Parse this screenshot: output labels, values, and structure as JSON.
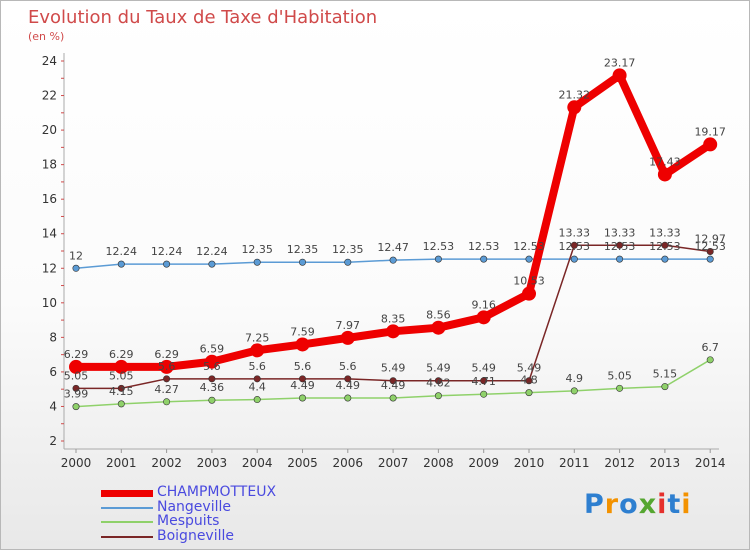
{
  "header": {
    "title": "Evolution du Taux de Taxe d'Habitation",
    "unit": "(en %)"
  },
  "chart_data": {
    "type": "line",
    "title": "Evolution du Taux de Taxe d'Habitation",
    "ylabel": "(en %)",
    "xlabel": "",
    "x": [
      "2000",
      "2001",
      "2002",
      "2003",
      "2004",
      "2005",
      "2006",
      "2007",
      "2008",
      "2009",
      "2010",
      "2011",
      "2012",
      "2013",
      "2014"
    ],
    "yticks": [
      "2",
      "4",
      "6",
      "8",
      "10",
      "12",
      "14",
      "16",
      "18",
      "20",
      "22",
      "24"
    ],
    "ylim": [
      2,
      24
    ],
    "grid": false,
    "legend_position": "bottom-left",
    "series": [
      {
        "name": "CHAMPMOTTEUX",
        "color": "#ee0000",
        "values": [
          6.29,
          6.29,
          6.29,
          6.59,
          7.25,
          7.59,
          7.97,
          8.35,
          8.56,
          9.16,
          10.53,
          21.32,
          23.17,
          17.43,
          19.17
        ],
        "labels": [
          "6.29",
          "6.29",
          "6.29",
          "6.59",
          "7.25",
          "7.59",
          "7.97",
          "8.35",
          "8.56",
          "9.16",
          "10.53",
          "21.32",
          "23.17",
          "17.43",
          "19.17"
        ]
      },
      {
        "name": "Nangeville",
        "color": "#5b9bd5",
        "values": [
          12,
          12.24,
          12.24,
          12.24,
          12.35,
          12.35,
          12.35,
          12.47,
          12.53,
          12.53,
          12.53,
          12.53,
          12.53,
          12.53,
          12.53
        ],
        "labels": [
          "12",
          "12.24",
          "12.24",
          "12.24",
          "12.35",
          "12.35",
          "12.35",
          "12.47",
          "12.53",
          "12.53",
          "12.53",
          "12.53",
          "12.53",
          "12.53",
          "12.53"
        ]
      },
      {
        "name": "Mespuits",
        "color": "#8fd16a",
        "values": [
          3.99,
          4.15,
          4.27,
          4.36,
          4.4,
          4.49,
          4.49,
          4.49,
          4.62,
          4.71,
          4.8,
          4.9,
          5.05,
          5.15,
          6.7
        ],
        "labels": [
          "3.99",
          "4.15",
          "4.27",
          "4.36",
          "4.4",
          "4.49",
          "4.49",
          "4.49",
          "4.62",
          "4.71",
          "4.8",
          "4.9",
          "5.05",
          "5.15",
          "6.7"
        ]
      },
      {
        "name": "Boigneville",
        "color": "#7a2626",
        "values": [
          5.05,
          5.05,
          5.6,
          5.6,
          5.6,
          5.6,
          5.6,
          5.49,
          5.49,
          5.49,
          5.49,
          13.33,
          13.33,
          13.33,
          12.97
        ],
        "labels": [
          "5.05",
          "5.05",
          "5.6",
          "5.6",
          "5.6",
          "5.6",
          "5.6",
          "5.49",
          "5.49",
          "5.49",
          "5.49",
          "13.33",
          "13.33",
          "13.33",
          "12.97"
        ]
      }
    ]
  },
  "legend": [
    {
      "label": "CHAMPMOTTEUX",
      "color": "#ee0000"
    },
    {
      "label": "Nangeville",
      "color": "#5b9bd5"
    },
    {
      "label": "Mespuits",
      "color": "#8fd16a"
    },
    {
      "label": "Boigneville",
      "color": "#7a2626"
    }
  ],
  "logo": {
    "letters": [
      "P",
      "r",
      "o",
      "x",
      "i",
      "t",
      "i"
    ],
    "colors": [
      "#2e7fd0",
      "#f39200",
      "#2e7fd0",
      "#55a630",
      "#e5302d",
      "#2e7fd0",
      "#f39200"
    ]
  }
}
